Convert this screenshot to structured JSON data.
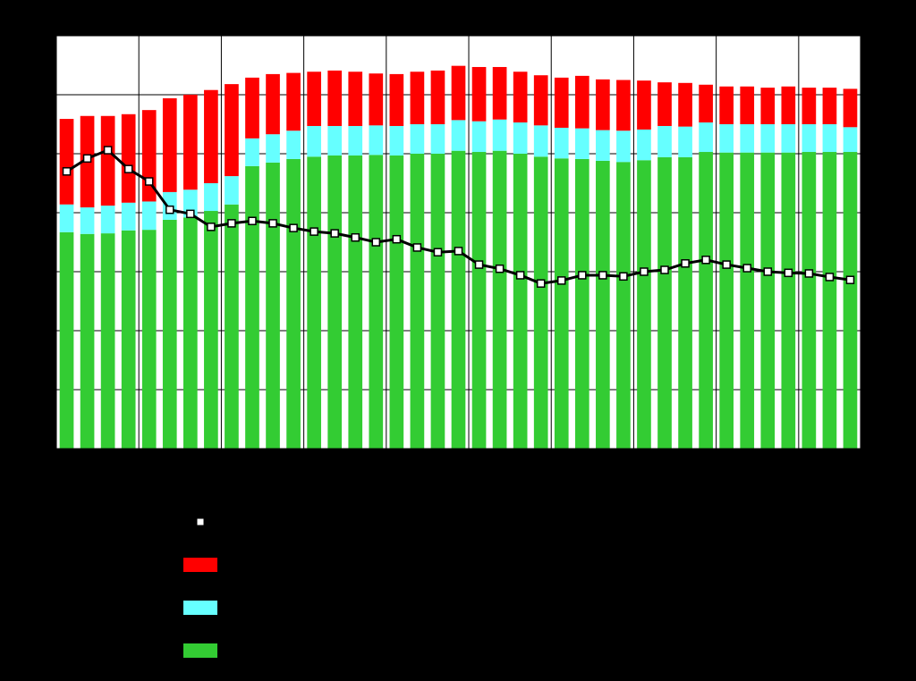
{
  "chart_data": {
    "type": "bar",
    "stacked": true,
    "categories": [
      null,
      null,
      null,
      null,
      null,
      null,
      null,
      null,
      null,
      null,
      null,
      null,
      null,
      null,
      null,
      null,
      null,
      null,
      null,
      null,
      null,
      null,
      null,
      null,
      null,
      null,
      null,
      null,
      null,
      null,
      null,
      null,
      null,
      null,
      null,
      null,
      null,
      null,
      null
    ],
    "ylim": [
      0,
      7
    ],
    "yticks": [
      0,
      1,
      2,
      3,
      4,
      5,
      6,
      7
    ],
    "grid": true,
    "background": "#ffffff",
    "plot_background": "#ffffff",
    "series": [
      {
        "color": "#33cc33",
        "values": [
          3.67,
          3.64,
          3.65,
          3.7,
          3.71,
          3.88,
          3.92,
          4.03,
          4.14,
          4.79,
          4.85,
          4.91,
          4.95,
          4.97,
          4.97,
          4.98,
          4.97,
          5.0,
          5.0,
          5.05,
          5.03,
          5.05,
          5.0,
          4.95,
          4.92,
          4.91,
          4.88,
          4.86,
          4.89,
          4.94,
          4.94,
          5.03,
          5.02,
          5.02,
          5.02,
          5.02,
          5.03,
          5.03,
          5.03
        ]
      },
      {
        "color": "#66ffff",
        "values": [
          0.47,
          0.45,
          0.47,
          0.47,
          0.48,
          0.47,
          0.47,
          0.47,
          0.48,
          0.47,
          0.48,
          0.48,
          0.52,
          0.5,
          0.5,
          0.5,
          0.5,
          0.5,
          0.5,
          0.52,
          0.52,
          0.53,
          0.53,
          0.53,
          0.52,
          0.52,
          0.52,
          0.53,
          0.52,
          0.53,
          0.52,
          0.5,
          0.48,
          0.48,
          0.48,
          0.48,
          0.47,
          0.47,
          0.42
        ]
      },
      {
        "color": "#ff0000",
        "values": [
          1.45,
          1.55,
          1.52,
          1.5,
          1.55,
          1.59,
          1.61,
          1.58,
          1.56,
          1.03,
          1.02,
          0.98,
          0.92,
          0.94,
          0.92,
          0.88,
          0.88,
          0.89,
          0.91,
          0.92,
          0.92,
          0.89,
          0.86,
          0.85,
          0.85,
          0.89,
          0.86,
          0.86,
          0.83,
          0.74,
          0.74,
          0.64,
          0.64,
          0.64,
          0.62,
          0.64,
          0.62,
          0.62,
          0.65
        ]
      },
      {
        "type": "line",
        "color": "#000000",
        "marker_color": "#ffffff",
        "values": [
          4.7,
          4.92,
          5.06,
          4.74,
          4.53,
          4.05,
          3.98,
          3.76,
          3.82,
          3.86,
          3.82,
          3.74,
          3.68,
          3.65,
          3.58,
          3.5,
          3.55,
          3.41,
          3.33,
          3.35,
          3.12,
          3.05,
          2.94,
          2.8,
          2.85,
          2.94,
          2.94,
          2.92,
          3.0,
          3.03,
          3.14,
          3.2,
          3.12,
          3.06,
          3.0,
          2.98,
          2.97,
          2.91,
          2.86
        ]
      }
    ]
  }
}
